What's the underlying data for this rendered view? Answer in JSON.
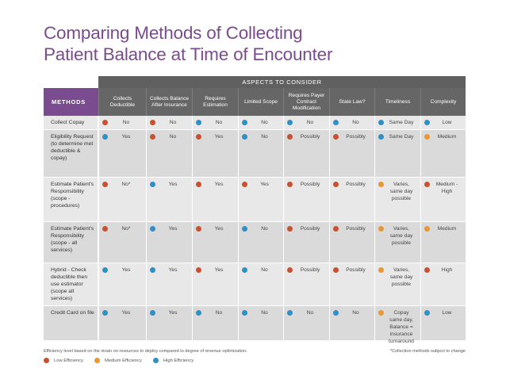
{
  "title_line1": "Comparing Methods of Collecting",
  "title_line2": "Patient Balance at Time of Encounter",
  "colors": {
    "low": "#c9512f",
    "medium": "#e89833",
    "high": "#2f8fc9",
    "purple": "#7a4b8e"
  },
  "table": {
    "aspects_label": "ASPECTS TO CONSIDER",
    "methods_label": "METHODS",
    "columns": [
      "Collects Deductible",
      "Collects Balance After Insurance",
      "Requires Estimation",
      "Limited Scope",
      "Requires Payer Contract Modification",
      "State Law?",
      "Timeliness",
      "Complexity"
    ],
    "rows": [
      {
        "method": "Collect Copay",
        "cells": [
          {
            "level": "low",
            "text": "No"
          },
          {
            "level": "low",
            "text": "No"
          },
          {
            "level": "high",
            "text": "No"
          },
          {
            "level": "high",
            "text": "No"
          },
          {
            "level": "high",
            "text": "No"
          },
          {
            "level": "high",
            "text": "No"
          },
          {
            "level": "high",
            "text": "Same Day"
          },
          {
            "level": "high",
            "text": "Low"
          }
        ]
      },
      {
        "method": "Eligibility Request (to determine met deductible & copay)",
        "cells": [
          {
            "level": "high",
            "text": "Yes"
          },
          {
            "level": "low",
            "text": "No"
          },
          {
            "level": "low",
            "text": "Yes"
          },
          {
            "level": "high",
            "text": "No"
          },
          {
            "level": "low",
            "text": "Possibly"
          },
          {
            "level": "low",
            "text": "Possibly"
          },
          {
            "level": "high",
            "text": "Same Day"
          },
          {
            "level": "medium",
            "text": "Medium"
          }
        ]
      },
      {
        "method": "Estimate Patient's Responsibility (scope - procedures)",
        "cells": [
          {
            "level": "low",
            "text": "No*"
          },
          {
            "level": "high",
            "text": "Yes"
          },
          {
            "level": "low",
            "text": "Yes"
          },
          {
            "level": "low",
            "text": "Yes"
          },
          {
            "level": "low",
            "text": "Possibly"
          },
          {
            "level": "low",
            "text": "Possibly"
          },
          {
            "level": "medium",
            "text": "Varies, same day possible"
          },
          {
            "level": "low",
            "text": "Medium - High"
          }
        ]
      },
      {
        "method": "Estimate Patient's Responsibility (scope - all services)",
        "cells": [
          {
            "level": "low",
            "text": "No*"
          },
          {
            "level": "high",
            "text": "Yes"
          },
          {
            "level": "low",
            "text": "Yes"
          },
          {
            "level": "high",
            "text": "No"
          },
          {
            "level": "low",
            "text": "Possibly"
          },
          {
            "level": "low",
            "text": "Possibly"
          },
          {
            "level": "medium",
            "text": "Varies, same day possible"
          },
          {
            "level": "medium",
            "text": "Medium"
          }
        ]
      },
      {
        "method": "Hybrid - Check deductible then use estimator (scope all services)",
        "cells": [
          {
            "level": "high",
            "text": "Yes"
          },
          {
            "level": "high",
            "text": "Yes"
          },
          {
            "level": "low",
            "text": "Yes"
          },
          {
            "level": "high",
            "text": "No"
          },
          {
            "level": "low",
            "text": "Possibly"
          },
          {
            "level": "low",
            "text": "Possibly"
          },
          {
            "level": "medium",
            "text": "Varies, same day possible"
          },
          {
            "level": "low",
            "text": "High"
          }
        ]
      },
      {
        "method": "Credit Card on file",
        "cells": [
          {
            "level": "high",
            "text": "Yes"
          },
          {
            "level": "high",
            "text": "Yes"
          },
          {
            "level": "high",
            "text": "No"
          },
          {
            "level": "high",
            "text": "No"
          },
          {
            "level": "high",
            "text": "No"
          },
          {
            "level": "high",
            "text": "No"
          },
          {
            "level": "medium",
            "text": "Copay same day, Balance = insurance turnaround"
          },
          {
            "level": "high",
            "text": "Low"
          }
        ]
      }
    ]
  },
  "footnote": "Efficiency level based on the strain on resources to deploy compared to degree of revenue optimization.",
  "footnote_right": "*Collection methods subject to change",
  "legend": [
    {
      "level": "low",
      "label": "Low Efficiency"
    },
    {
      "level": "medium",
      "label": "Medium Efficiency"
    },
    {
      "level": "high",
      "label": "High Efficiency"
    }
  ]
}
